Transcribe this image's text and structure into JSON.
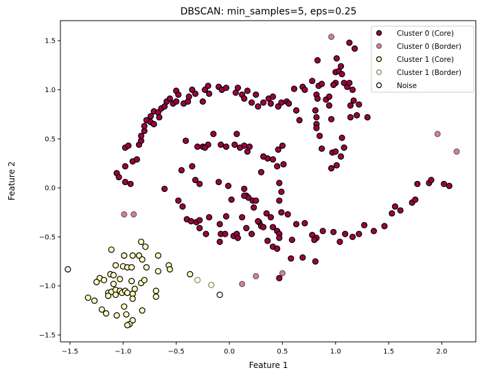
{
  "chart_data": {
    "type": "scatter",
    "title": "DBSCAN: min_samples=5, eps=0.25",
    "xlabel": "Feature 1",
    "ylabel": "Feature 2",
    "xlim": [
      -1.59,
      2.32
    ],
    "ylim": [
      -1.57,
      1.705
    ],
    "xticks": [
      -1.5,
      -1.0,
      -0.5,
      0.0,
      0.5,
      1.0,
      1.5,
      2.0
    ],
    "xtick_labels": [
      "−1.5",
      "−1.0",
      "−0.5",
      "0.0",
      "0.5",
      "1.0",
      "1.5",
      "2.0"
    ],
    "yticks": [
      -1.5,
      -1.0,
      -0.5,
      0.0,
      0.5,
      1.0,
      1.5
    ],
    "ytick_labels": [
      "−1.5",
      "−1.0",
      "−0.5",
      "0.0",
      "0.5",
      "1.0",
      "1.5"
    ],
    "grid": false,
    "legend_position": "top-right",
    "series": [
      {
        "name": "Cluster 0 (Core)",
        "color": "#9e0142",
        "alpha": 1.0,
        "points": [
          [
            -0.98,
            0.22
          ],
          [
            -0.98,
            0.41
          ],
          [
            -0.95,
            0.43
          ],
          [
            -1.06,
            0.15
          ],
          [
            -1.04,
            0.11
          ],
          [
            -0.98,
            0.06
          ],
          [
            -0.93,
            0.04
          ],
          [
            -0.91,
            0.27
          ],
          [
            -0.87,
            0.29
          ],
          [
            -0.85,
            0.44
          ],
          [
            -0.83,
            0.48
          ],
          [
            -0.83,
            0.53
          ],
          [
            -0.8,
            0.58
          ],
          [
            -0.8,
            0.63
          ],
          [
            -0.78,
            0.69
          ],
          [
            -0.74,
            0.67
          ],
          [
            -0.74,
            0.73
          ],
          [
            -0.71,
            0.78
          ],
          [
            -0.71,
            0.65
          ],
          [
            -0.67,
            0.77
          ],
          [
            -0.66,
            0.72
          ],
          [
            -0.64,
            0.81
          ],
          [
            -0.61,
            0.83
          ],
          [
            -0.59,
            0.88
          ],
          [
            -0.56,
            0.91
          ],
          [
            -0.53,
            0.86
          ],
          [
            -0.5,
            0.88
          ],
          [
            -0.5,
            0.99
          ],
          [
            -0.48,
            0.95
          ],
          [
            -0.43,
            0.86
          ],
          [
            -0.39,
            0.88
          ],
          [
            -0.38,
            0.93
          ],
          [
            -0.35,
            1.0
          ],
          [
            -0.32,
            0.96
          ],
          [
            -0.25,
            0.88
          ],
          [
            -0.23,
            1.0
          ],
          [
            -0.2,
            1.04
          ],
          [
            -0.19,
            0.96
          ],
          [
            -0.1,
            1.03
          ],
          [
            -0.07,
            1.0
          ],
          [
            -0.03,
            1.02
          ],
          [
            0.06,
            0.97
          ],
          [
            0.08,
            1.02
          ],
          [
            0.12,
            0.95
          ],
          [
            0.14,
            0.91
          ],
          [
            0.17,
            0.99
          ],
          [
            0.21,
            0.87
          ],
          [
            0.25,
            0.95
          ],
          [
            0.27,
            0.83
          ],
          [
            0.32,
            0.87
          ],
          [
            0.37,
            0.91
          ],
          [
            0.39,
            0.86
          ],
          [
            0.41,
            0.93
          ],
          [
            0.46,
            0.83
          ],
          [
            0.49,
            0.87
          ],
          [
            0.54,
            0.88
          ],
          [
            0.56,
            0.86
          ],
          [
            0.61,
            1.01
          ],
          [
            0.63,
            0.79
          ],
          [
            0.66,
            0.69
          ],
          [
            0.69,
            1.03
          ],
          [
            0.71,
            1.0
          ],
          [
            0.78,
            1.09
          ],
          [
            0.81,
            0.79
          ],
          [
            0.82,
            0.95
          ],
          [
            0.83,
            0.91
          ],
          [
            0.84,
            1.04
          ],
          [
            0.87,
            1.06
          ],
          [
            0.82,
            0.65
          ],
          [
            0.82,
            0.61
          ],
          [
            0.82,
            0.72
          ],
          [
            0.85,
            0.53
          ],
          [
            0.87,
            0.4
          ],
          [
            0.91,
            0.9
          ],
          [
            0.94,
            0.84
          ],
          [
            0.96,
            0.7
          ],
          [
            0.97,
            0.36
          ],
          [
            1.0,
            0.37
          ],
          [
            0.96,
            0.2
          ],
          [
            1.01,
            0.23
          ],
          [
            1.05,
            0.32
          ],
          [
            1.08,
            0.41
          ],
          [
            1.06,
            0.51
          ],
          [
            1.0,
            1.07
          ],
          [
            1.0,
            1.18
          ],
          [
            1.03,
            1.19
          ],
          [
            1.05,
            1.24
          ],
          [
            1.01,
            1.32
          ],
          [
            0.98,
            1.05
          ],
          [
            0.94,
            0.93
          ],
          [
            1.06,
            1.16
          ],
          [
            1.08,
            1.07
          ],
          [
            1.11,
            1.03
          ],
          [
            1.13,
            1.07
          ],
          [
            1.14,
            0.72
          ],
          [
            1.16,
            1.0
          ],
          [
            1.2,
            0.74
          ],
          [
            1.14,
            0.84
          ],
          [
            1.22,
            0.85
          ],
          [
            1.3,
            0.72
          ],
          [
            1.17,
            0.89
          ],
          [
            1.13,
            1.48
          ],
          [
            1.18,
            1.42
          ],
          [
            0.83,
            1.3
          ],
          [
            1.77,
            0.04
          ],
          [
            1.88,
            0.05
          ],
          [
            1.9,
            0.08
          ],
          [
            2.02,
            0.04
          ],
          [
            2.07,
            0.02
          ],
          [
            1.72,
            -0.15
          ],
          [
            1.75,
            -0.12
          ],
          [
            1.61,
            -0.23
          ],
          [
            1.56,
            -0.19
          ],
          [
            1.53,
            -0.26
          ],
          [
            1.46,
            -0.39
          ],
          [
            1.36,
            -0.44
          ],
          [
            1.27,
            -0.38
          ],
          [
            1.22,
            -0.47
          ],
          [
            1.16,
            -0.5
          ],
          [
            1.09,
            -0.47
          ],
          [
            1.04,
            -0.55
          ],
          [
            0.98,
            -0.45
          ],
          [
            0.88,
            -0.44
          ],
          [
            0.82,
            -0.51
          ],
          [
            0.78,
            -0.48
          ],
          [
            0.71,
            -0.36
          ],
          [
            0.63,
            -0.37
          ],
          [
            0.59,
            -0.53
          ],
          [
            0.55,
            -0.27
          ],
          [
            0.58,
            -0.72
          ],
          [
            0.81,
            -0.75
          ],
          [
            0.69,
            -0.71
          ],
          [
            0.8,
            -0.53
          ],
          [
            -0.61,
            -0.01
          ],
          [
            -0.45,
            0.18
          ],
          [
            -0.41,
            0.48
          ],
          [
            -0.35,
            0.22
          ],
          [
            -0.32,
            0.08
          ],
          [
            -0.3,
            0.42
          ],
          [
            -0.28,
            0.04
          ],
          [
            -0.48,
            -0.13
          ],
          [
            -0.44,
            -0.19
          ],
          [
            -0.4,
            -0.32
          ],
          [
            -0.36,
            -0.34
          ],
          [
            -0.31,
            -0.35
          ],
          [
            -0.28,
            -0.33
          ],
          [
            -0.28,
            -0.41
          ],
          [
            -0.22,
            -0.47
          ],
          [
            -0.19,
            -0.3
          ],
          [
            -0.09,
            -0.55
          ],
          [
            -0.08,
            -0.47
          ],
          [
            -0.04,
            -0.47
          ],
          [
            -0.09,
            -0.37
          ],
          [
            0.04,
            -0.49
          ],
          [
            0.07,
            -0.47
          ],
          [
            0.08,
            -0.51
          ],
          [
            0.12,
            -0.3
          ],
          [
            0.16,
            -0.08
          ],
          [
            0.18,
            -0.1
          ],
          [
            0.22,
            -0.13
          ],
          [
            0.25,
            -0.13
          ],
          [
            0.28,
            -0.35
          ],
          [
            0.3,
            -0.39
          ],
          [
            0.35,
            -0.26
          ],
          [
            0.39,
            -0.3
          ],
          [
            0.41,
            -0.4
          ],
          [
            0.45,
            -0.44
          ],
          [
            0.47,
            -0.47
          ],
          [
            0.49,
            -0.25
          ],
          [
            0.47,
            -0.13
          ],
          [
            0.49,
            -0.04
          ],
          [
            0.47,
            0.05
          ],
          [
            0.46,
            0.39
          ],
          [
            0.51,
            0.24
          ],
          [
            0.5,
            0.43
          ],
          [
            0.41,
            0.29
          ],
          [
            0.45,
            0.22
          ],
          [
            0.36,
            0.3
          ],
          [
            0.3,
            0.16
          ],
          [
            0.32,
            0.32
          ],
          [
            0.19,
            0.42
          ],
          [
            0.17,
            0.37
          ],
          [
            0.14,
            0.43
          ],
          [
            0.1,
            0.41
          ],
          [
            0.07,
            0.55
          ],
          [
            0.05,
            0.44
          ],
          [
            -0.03,
            0.42
          ],
          [
            -0.08,
            0.44
          ],
          [
            -0.15,
            0.55
          ],
          [
            -0.2,
            0.44
          ],
          [
            -0.25,
            0.42
          ],
          [
            -0.23,
            0.41
          ],
          [
            -0.1,
            0.06
          ],
          [
            -0.01,
            0.02
          ],
          [
            0.02,
            -0.12
          ],
          [
            0.14,
            -0.08
          ],
          [
            0.14,
            -0.01
          ],
          [
            0.23,
            -0.2
          ],
          [
            -0.03,
            -0.29
          ],
          [
            0.36,
            -0.54
          ],
          [
            0.41,
            -0.6
          ],
          [
            0.45,
            -0.62
          ],
          [
            0.47,
            -0.51
          ],
          [
            0.21,
            -0.47
          ],
          [
            0.16,
            -0.41
          ],
          [
            0.27,
            -0.34
          ],
          [
            0.32,
            -0.4
          ],
          [
            0.47,
            -0.92
          ]
        ]
      },
      {
        "name": "Cluster 0 (Border)",
        "color": "#9e0142",
        "alpha": 0.5,
        "points": [
          [
            -0.99,
            -0.27
          ],
          [
            -0.9,
            -0.27
          ],
          [
            0.12,
            -0.98
          ],
          [
            0.25,
            -0.9
          ],
          [
            0.5,
            -0.87
          ],
          [
            0.96,
            1.54
          ],
          [
            1.96,
            0.55
          ],
          [
            2.14,
            0.37
          ]
        ]
      },
      {
        "name": "Cluster 1 (Core)",
        "color": "#ffffbf",
        "alpha": 1.0,
        "points": [
          [
            -0.83,
            -0.55
          ],
          [
            -0.79,
            -0.6
          ],
          [
            -1.11,
            -0.63
          ],
          [
            -0.99,
            -0.69
          ],
          [
            -0.91,
            -0.69
          ],
          [
            -0.85,
            -0.69
          ],
          [
            -0.82,
            -0.73
          ],
          [
            -0.67,
            -0.69
          ],
          [
            -1.07,
            -0.79
          ],
          [
            -1.0,
            -0.8
          ],
          [
            -0.96,
            -0.81
          ],
          [
            -0.92,
            -0.81
          ],
          [
            -0.78,
            -0.81
          ],
          [
            -0.67,
            -0.85
          ],
          [
            -0.57,
            -0.79
          ],
          [
            -0.56,
            -0.83
          ],
          [
            -1.12,
            -0.88
          ],
          [
            -1.09,
            -0.89
          ],
          [
            -1.22,
            -0.92
          ],
          [
            -1.18,
            -0.94
          ],
          [
            -1.25,
            -0.96
          ],
          [
            -1.03,
            -0.93
          ],
          [
            -1.09,
            -0.98
          ],
          [
            -0.92,
            -0.95
          ],
          [
            -0.83,
            -0.97
          ],
          [
            -0.8,
            -0.94
          ],
          [
            -0.89,
            -1.03
          ],
          [
            -0.69,
            -1.05
          ],
          [
            -0.69,
            -1.11
          ],
          [
            -1.14,
            -1.07
          ],
          [
            -1.11,
            -1.06
          ],
          [
            -1.07,
            -1.04
          ],
          [
            -1.03,
            -1.05
          ],
          [
            -1.01,
            -1.07
          ],
          [
            -0.98,
            -1.05
          ],
          [
            -0.96,
            -1.07
          ],
          [
            -0.91,
            -1.08
          ],
          [
            -0.91,
            -1.13
          ],
          [
            -1.14,
            -1.1
          ],
          [
            -1.07,
            -1.09
          ],
          [
            -1.33,
            -1.12
          ],
          [
            -1.27,
            -1.15
          ],
          [
            -0.99,
            -1.21
          ],
          [
            -1.2,
            -1.24
          ],
          [
            -1.16,
            -1.28
          ],
          [
            -1.06,
            -1.3
          ],
          [
            -0.97,
            -1.29
          ],
          [
            -0.82,
            -1.25
          ],
          [
            -0.91,
            -1.35
          ],
          [
            -0.94,
            -1.39
          ],
          [
            -0.96,
            -1.4
          ],
          [
            -0.37,
            -0.88
          ]
        ]
      },
      {
        "name": "Cluster 1 (Border)",
        "color": "#ffffbf",
        "alpha": 0.5,
        "points": [
          [
            -0.3,
            -0.94
          ],
          [
            -0.17,
            -0.99
          ]
        ]
      },
      {
        "name": "Noise",
        "color": "#ffffff",
        "alpha": 1.0,
        "points": [
          [
            -1.52,
            -0.83
          ],
          [
            -0.09,
            -1.09
          ]
        ]
      }
    ]
  }
}
